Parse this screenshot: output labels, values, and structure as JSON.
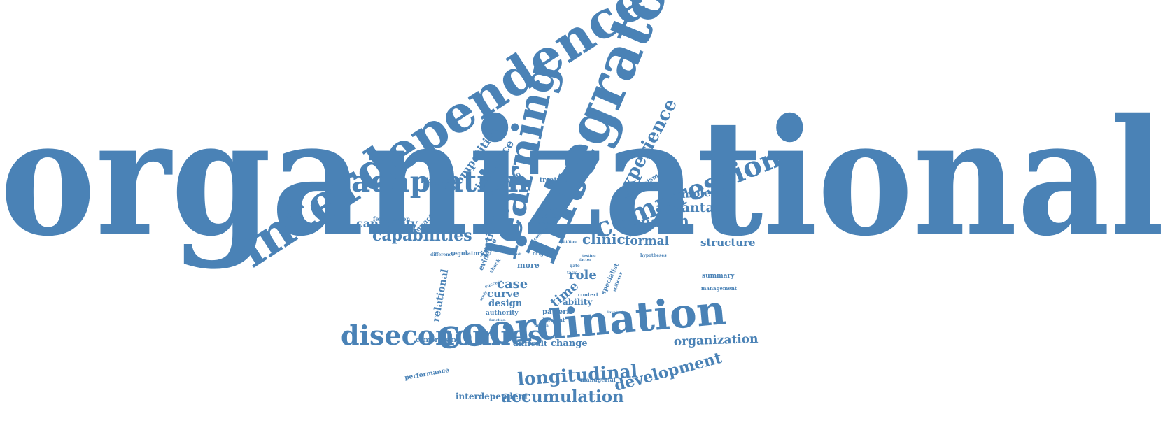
{
  "color": "#4a82b6",
  "words": [
    {
      "id": "organizational",
      "text": "organizational"
    },
    {
      "id": "interdependence",
      "text": "interdependence"
    },
    {
      "id": "integrator",
      "text": "integrator"
    },
    {
      "id": "learning",
      "text": "learning"
    },
    {
      "id": "coordination",
      "text": "coordination"
    },
    {
      "id": "adaptation",
      "text": "adaptation"
    },
    {
      "id": "compression",
      "text": "compression"
    },
    {
      "id": "diseconomies",
      "text": "diseconomies"
    },
    {
      "id": "experience",
      "text": "experience"
    },
    {
      "id": "longitudinal",
      "text": "longitudinal"
    },
    {
      "id": "development",
      "text": "development"
    },
    {
      "id": "accumulation",
      "text": "accumulation"
    },
    {
      "id": "capabilities",
      "text": "capabilities"
    },
    {
      "id": "research",
      "text": "research"
    },
    {
      "id": "advantage",
      "text": "advantage"
    },
    {
      "id": "organization",
      "text": "organization"
    },
    {
      "id": "complexity",
      "text": "complexity"
    },
    {
      "id": "clinic",
      "text": "clinic"
    },
    {
      "id": "formal",
      "text": "formal"
    },
    {
      "id": "structure",
      "text": "structure"
    },
    {
      "id": "capability",
      "text": "capability"
    },
    {
      "id": "competitive",
      "text": "competitive"
    },
    {
      "id": "influence",
      "text": "influence"
    },
    {
      "id": "fertility",
      "text": "fertility"
    },
    {
      "id": "relational",
      "text": "relational"
    },
    {
      "id": "time",
      "text": "time"
    },
    {
      "id": "role",
      "text": "role"
    },
    {
      "id": "case",
      "text": "case"
    },
    {
      "id": "curve",
      "text": "curve"
    },
    {
      "id": "design",
      "text": "design"
    },
    {
      "id": "change",
      "text": "change"
    },
    {
      "id": "difficult",
      "text": "difficult"
    },
    {
      "id": "interdependent",
      "text": "interdependent"
    },
    {
      "id": "kingdom",
      "text": "kingdom"
    },
    {
      "id": "selection",
      "text": "selection"
    },
    {
      "id": "treatment",
      "text": "treatment"
    },
    {
      "id": "mechanism",
      "text": "mechanism"
    },
    {
      "id": "impact",
      "text": "impact"
    },
    {
      "id": "fertilization",
      "text": "fertilization"
    },
    {
      "id": "regulatory",
      "text": "regulatory"
    },
    {
      "id": "evidence",
      "text": "evidence"
    },
    {
      "id": "more",
      "text": "more"
    },
    {
      "id": "ability",
      "text": "ability"
    },
    {
      "id": "pattern",
      "text": "pattern"
    },
    {
      "id": "authority",
      "text": "authority"
    },
    {
      "id": "specialist",
      "text": "specialist"
    },
    {
      "id": "summary",
      "text": "summary"
    },
    {
      "id": "management",
      "text": "management"
    },
    {
      "id": "compressing",
      "text": "compressing"
    },
    {
      "id": "performance",
      "text": "performance"
    },
    {
      "id": "managerial",
      "text": "managerial"
    },
    {
      "id": "shock",
      "text": "shock"
    },
    {
      "id": "context",
      "text": "context"
    },
    {
      "id": "different",
      "text": "different"
    },
    {
      "id": "difference",
      "text": "difference"
    },
    {
      "id": "origin",
      "text": "origin"
    },
    {
      "id": "success",
      "text": "success"
    },
    {
      "id": "hypotheses",
      "text": "hypotheses"
    },
    {
      "id": "spillover",
      "text": "spillover"
    },
    {
      "id": "function",
      "text": "function"
    },
    {
      "id": "growth",
      "text": "growth"
    },
    {
      "id": "shallower",
      "text": "shallower"
    },
    {
      "id": "complex",
      "text": "complex"
    },
    {
      "id": "situation",
      "text": "situation"
    },
    {
      "id": "implication",
      "text": "implication"
    },
    {
      "id": "shifting",
      "text": "shifting"
    },
    {
      "id": "gate",
      "text": "gate"
    },
    {
      "id": "task",
      "text": "task"
    },
    {
      "id": "result",
      "text": "result"
    },
    {
      "id": "factor",
      "text": "factor"
    },
    {
      "id": "testing",
      "text": "testing"
    },
    {
      "id": "involved",
      "text": "involved"
    },
    {
      "id": "study",
      "text": "study"
    }
  ]
}
